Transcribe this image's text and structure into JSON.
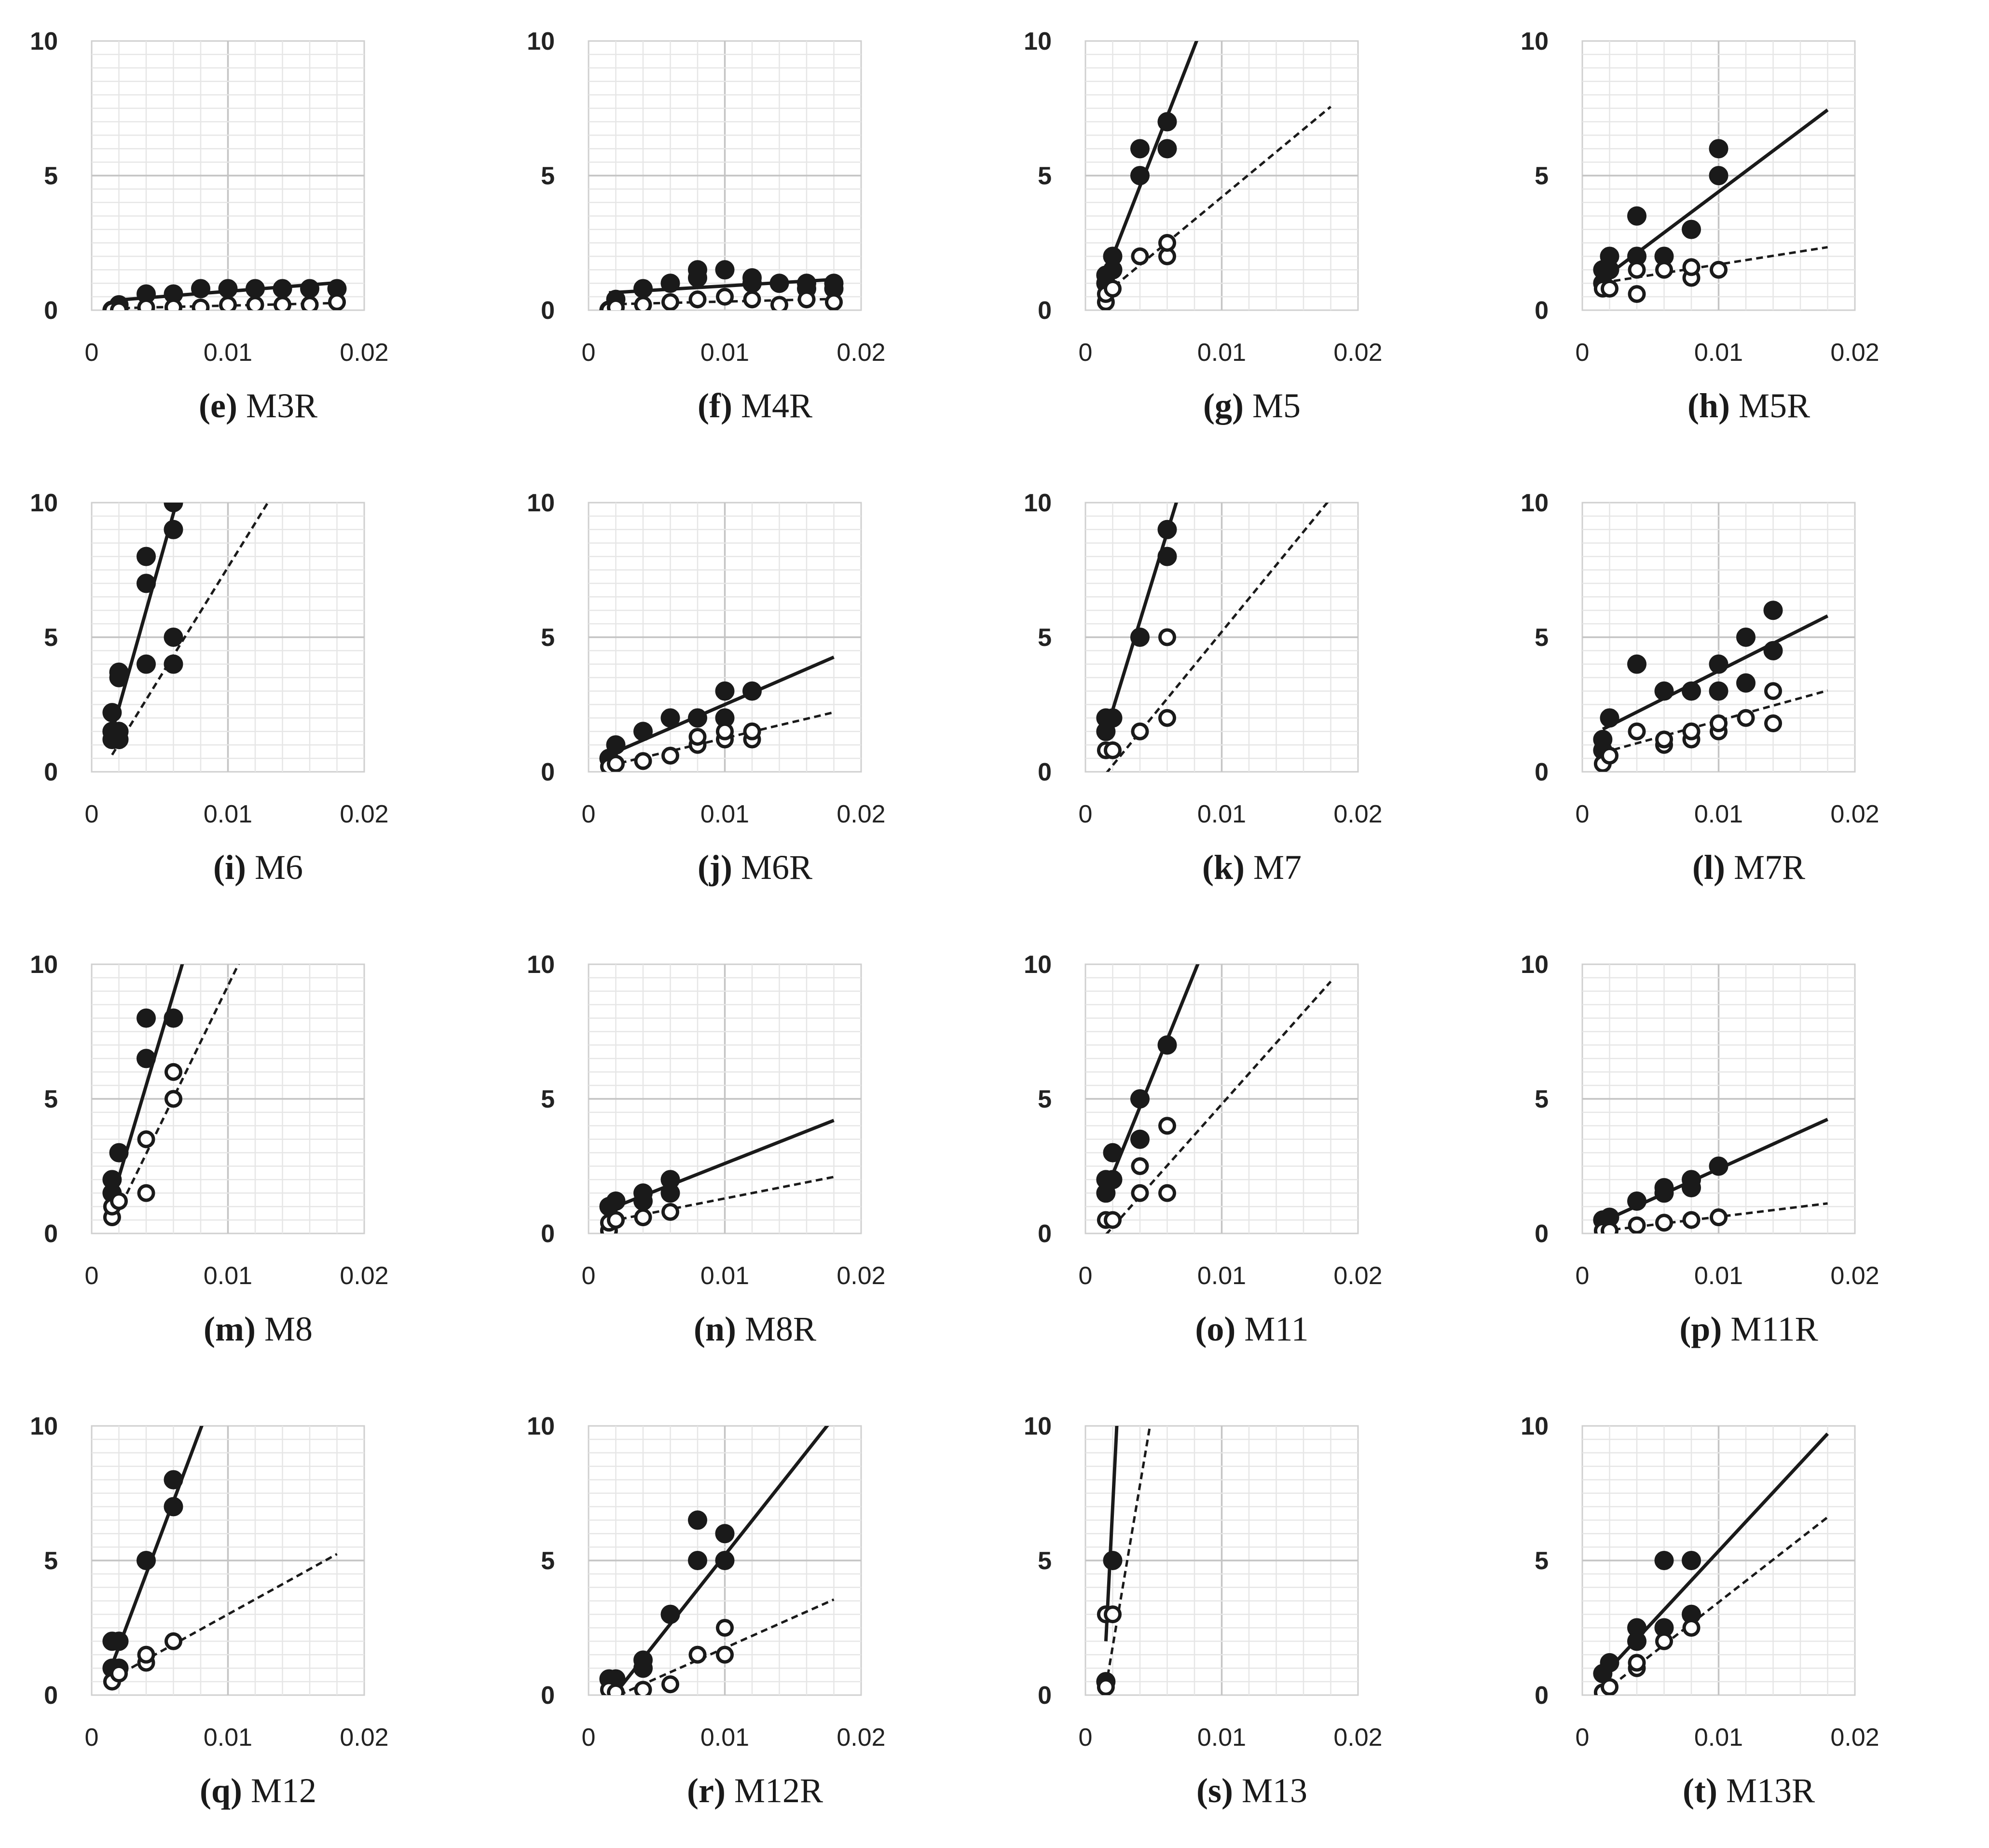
{
  "axis_tick_labels": {
    "x": [
      "0",
      "0.01",
      "0.02"
    ],
    "y": [
      "0",
      "5",
      "10"
    ]
  },
  "chart_data": [
    {
      "letter": "(e)",
      "name": "M3R",
      "type": "scatter",
      "xlim": [
        0,
        0.02
      ],
      "ylim": [
        0,
        10
      ],
      "grid": true,
      "legend": "none",
      "series": [
        {
          "marker": "filled",
          "line": "solid",
          "x": [
            0.0015,
            0.002,
            0.002,
            0.004,
            0.006,
            0.008,
            0.01,
            0.012,
            0.014,
            0.016,
            0.018
          ],
          "y": [
            0,
            0,
            0.2,
            0.6,
            0.6,
            0.8,
            0.8,
            0.8,
            0.8,
            0.8,
            0.8
          ],
          "fit": [
            0.3,
            40
          ]
        },
        {
          "marker": "open",
          "line": "dashed",
          "x": [
            0.0015,
            0.002,
            0.004,
            0.006,
            0.008,
            0.01,
            0.012,
            0.014,
            0.016,
            0.018
          ],
          "y": [
            0,
            0,
            0.1,
            0.1,
            0.1,
            0.2,
            0.2,
            0.2,
            0.2,
            0.3
          ],
          "fit": [
            0.05,
            12
          ]
        }
      ]
    },
    {
      "letter": "(f)",
      "name": "M4R",
      "type": "scatter",
      "xlim": [
        0,
        0.02
      ],
      "ylim": [
        0,
        10
      ],
      "grid": true,
      "legend": "none",
      "series": [
        {
          "marker": "filled",
          "line": "solid",
          "x": [
            0.0015,
            0.002,
            0.004,
            0.006,
            0.008,
            0.008,
            0.01,
            0.012,
            0.012,
            0.014,
            0.016,
            0.016,
            0.018,
            0.018
          ],
          "y": [
            0,
            0.4,
            0.8,
            1.0,
            1.5,
            1.2,
            1.5,
            1.2,
            1.0,
            1.0,
            1.0,
            0.8,
            1.0,
            0.8
          ],
          "fit": [
            0.6,
            30
          ]
        },
        {
          "marker": "open",
          "line": "dashed",
          "x": [
            0.0015,
            0.002,
            0.004,
            0.006,
            0.008,
            0.01,
            0.012,
            0.014,
            0.016,
            0.018
          ],
          "y": [
            0,
            0.1,
            0.2,
            0.3,
            0.4,
            0.5,
            0.4,
            0.2,
            0.4,
            0.3
          ],
          "fit": [
            0.2,
            12
          ]
        }
      ]
    },
    {
      "letter": "(g)",
      "name": "M5",
      "type": "scatter",
      "xlim": [
        0,
        0.02
      ],
      "ylim": [
        0,
        10
      ],
      "grid": true,
      "legend": "none",
      "series": [
        {
          "marker": "filled",
          "line": "solid",
          "x": [
            0.0015,
            0.0015,
            0.002,
            0.002,
            0.004,
            0.004,
            0.006,
            0.006
          ],
          "y": [
            1.0,
            1.3,
            1.5,
            2.0,
            5.0,
            6.0,
            6.0,
            7.0
          ],
          "fit": [
            -0.6,
            1300
          ]
        },
        {
          "marker": "open",
          "line": "dashed",
          "x": [
            0.0015,
            0.0015,
            0.002,
            0.004,
            0.006,
            0.006
          ],
          "y": [
            0.3,
            0.6,
            0.8,
            2.0,
            2.0,
            2.5
          ],
          "fit": [
            0,
            420
          ]
        }
      ]
    },
    {
      "letter": "(h)",
      "name": "M5R",
      "type": "scatter",
      "xlim": [
        0,
        0.02
      ],
      "ylim": [
        0,
        10
      ],
      "grid": true,
      "legend": "none",
      "series": [
        {
          "marker": "filled",
          "line": "solid",
          "x": [
            0.0015,
            0.0015,
            0.002,
            0.002,
            0.004,
            0.004,
            0.006,
            0.008,
            0.01,
            0.01
          ],
          "y": [
            1.0,
            1.5,
            1.5,
            2.0,
            2.0,
            3.5,
            2.0,
            3.0,
            5.0,
            6.0
          ],
          "fit": [
            0.6,
            380
          ]
        },
        {
          "marker": "open",
          "line": "dashed",
          "x": [
            0.0015,
            0.002,
            0.004,
            0.004,
            0.006,
            0.008,
            0.008,
            0.01
          ],
          "y": [
            0.8,
            0.8,
            0.6,
            1.5,
            1.5,
            1.2,
            1.6,
            1.5
          ],
          "fit": [
            0.9,
            80
          ]
        }
      ]
    },
    {
      "letter": "(i)",
      "name": "M6",
      "type": "scatter",
      "xlim": [
        0,
        0.02
      ],
      "ylim": [
        0,
        10
      ],
      "grid": true,
      "legend": "none",
      "series": [
        {
          "marker": "filled",
          "line": "solid",
          "x": [
            0.0015,
            0.0015,
            0.002,
            0.002,
            0.004,
            0.004,
            0.006,
            0.006
          ],
          "y": [
            1.5,
            2.2,
            3.5,
            3.7,
            7.0,
            8.0,
            9.0,
            10.0
          ],
          "fit": [
            -1.2,
            1800
          ]
        },
        {
          "marker": "filled",
          "line": "dashed",
          "x": [
            0.0015,
            0.0015,
            0.002,
            0.002,
            0.004,
            0.006,
            0.006
          ],
          "y": [
            1.2,
            1.5,
            1.2,
            1.5,
            4.0,
            4.0,
            5.0
          ],
          "fit": [
            -0.6,
            820
          ]
        }
      ]
    },
    {
      "letter": "(j)",
      "name": "M6R",
      "type": "scatter",
      "xlim": [
        0,
        0.02
      ],
      "ylim": [
        0,
        10
      ],
      "grid": true,
      "legend": "none",
      "series": [
        {
          "marker": "filled",
          "line": "solid",
          "x": [
            0.0015,
            0.002,
            0.004,
            0.006,
            0.008,
            0.01,
            0.01,
            0.012
          ],
          "y": [
            0.5,
            1.0,
            1.5,
            2.0,
            2.0,
            2.0,
            3.0,
            3.0
          ],
          "fit": [
            0.3,
            220
          ]
        },
        {
          "marker": "open",
          "line": "dashed",
          "x": [
            0.0015,
            0.002,
            0.004,
            0.006,
            0.008,
            0.008,
            0.01,
            0.01,
            0.012,
            0.012
          ],
          "y": [
            0.2,
            0.3,
            0.4,
            0.6,
            1.0,
            1.3,
            1.2,
            1.5,
            1.2,
            1.5
          ],
          "fit": [
            0.05,
            120
          ]
        }
      ]
    },
    {
      "letter": "(k)",
      "name": "M7",
      "type": "scatter",
      "xlim": [
        0,
        0.02
      ],
      "ylim": [
        0,
        10
      ],
      "grid": true,
      "legend": "none",
      "series": [
        {
          "marker": "filled",
          "line": "solid",
          "x": [
            0.0015,
            0.0015,
            0.002,
            0.004,
            0.006,
            0.006
          ],
          "y": [
            1.5,
            2.0,
            2.0,
            5.0,
            8.0,
            9.0
          ],
          "fit": [
            -1.0,
            1650
          ]
        },
        {
          "marker": "open",
          "line": "dashed",
          "x": [
            0.0015,
            0.002,
            0.004,
            0.006,
            0.006
          ],
          "y": [
            0.8,
            0.8,
            1.5,
            2.0,
            5.0
          ],
          "fit": [
            -1.0,
            620
          ]
        }
      ]
    },
    {
      "letter": "(l)",
      "name": "M7R",
      "type": "scatter",
      "xlim": [
        0,
        0.02
      ],
      "ylim": [
        0,
        10
      ],
      "grid": true,
      "legend": "none",
      "series": [
        {
          "marker": "filled",
          "line": "solid",
          "x": [
            0.0015,
            0.0015,
            0.002,
            0.004,
            0.006,
            0.008,
            0.01,
            0.01,
            0.012,
            0.012,
            0.014,
            0.014
          ],
          "y": [
            0.8,
            1.2,
            2.0,
            4.0,
            3.0,
            3.0,
            3.0,
            4.0,
            3.3,
            5.0,
            4.5,
            6.0
          ],
          "fit": [
            1.2,
            255
          ]
        },
        {
          "marker": "open",
          "line": "dashed",
          "x": [
            0.0015,
            0.002,
            0.004,
            0.006,
            0.006,
            0.008,
            0.008,
            0.01,
            0.01,
            0.012,
            0.014,
            0.014
          ],
          "y": [
            0.3,
            0.6,
            1.5,
            1.0,
            1.2,
            1.2,
            1.5,
            1.5,
            1.8,
            2.0,
            1.8,
            3.0
          ],
          "fit": [
            0.5,
            140
          ]
        }
      ]
    },
    {
      "letter": "(m)",
      "name": "M8",
      "type": "scatter",
      "xlim": [
        0,
        0.02
      ],
      "ylim": [
        0,
        10
      ],
      "grid": true,
      "legend": "none",
      "series": [
        {
          "marker": "filled",
          "line": "solid",
          "x": [
            0.0015,
            0.0015,
            0.002,
            0.004,
            0.004,
            0.006
          ],
          "y": [
            1.5,
            2.0,
            3.0,
            6.5,
            8.0,
            8.0
          ],
          "fit": [
            -1.3,
            1700
          ]
        },
        {
          "marker": "open",
          "line": "dashed",
          "x": [
            0.0015,
            0.0015,
            0.002,
            0.004,
            0.004,
            0.006,
            0.006
          ],
          "y": [
            0.6,
            1.0,
            1.2,
            1.5,
            3.5,
            5.0,
            6.0
          ],
          "fit": [
            -1.2,
            1040
          ]
        }
      ]
    },
    {
      "letter": "(n)",
      "name": "M8R",
      "type": "scatter",
      "xlim": [
        0,
        0.02
      ],
      "ylim": [
        0,
        10
      ],
      "grid": true,
      "legend": "none",
      "series": [
        {
          "marker": "filled",
          "line": "solid",
          "x": [
            0.0015,
            0.002,
            0.004,
            0.004,
            0.006,
            0.006
          ],
          "y": [
            1.0,
            1.2,
            1.2,
            1.5,
            1.5,
            2.0
          ],
          "fit": [
            0.6,
            200
          ]
        },
        {
          "marker": "open",
          "line": "dashed",
          "x": [
            0.0015,
            0.0015,
            0.002,
            0.004,
            0.006
          ],
          "y": [
            0.1,
            0.4,
            0.5,
            0.6,
            0.8
          ],
          "fit": [
            0.3,
            100
          ]
        }
      ]
    },
    {
      "letter": "(o)",
      "name": "M11",
      "type": "scatter",
      "xlim": [
        0,
        0.02
      ],
      "ylim": [
        0,
        10
      ],
      "grid": true,
      "legend": "none",
      "series": [
        {
          "marker": "filled",
          "line": "solid",
          "x": [
            0.0015,
            0.0015,
            0.002,
            0.002,
            0.004,
            0.004,
            0.006
          ],
          "y": [
            1.5,
            2.0,
            2.0,
            3.0,
            3.5,
            5.0,
            7.0
          ],
          "fit": [
            -0.3,
            1250
          ]
        },
        {
          "marker": "open",
          "line": "dashed",
          "x": [
            0.0015,
            0.002,
            0.004,
            0.004,
            0.006,
            0.006
          ],
          "y": [
            0.5,
            0.5,
            1.5,
            2.5,
            1.5,
            4.0
          ],
          "fit": [
            -0.9,
            570
          ]
        }
      ]
    },
    {
      "letter": "(p)",
      "name": "M11R",
      "type": "scatter",
      "xlim": [
        0,
        0.02
      ],
      "ylim": [
        0,
        10
      ],
      "grid": true,
      "legend": "none",
      "series": [
        {
          "marker": "filled",
          "line": "solid",
          "x": [
            0.0015,
            0.002,
            0.004,
            0.006,
            0.006,
            0.008,
            0.008,
            0.01
          ],
          "y": [
            0.5,
            0.6,
            1.2,
            1.5,
            1.7,
            1.7,
            2.0,
            2.5
          ],
          "fit": [
            0.1,
            230
          ]
        },
        {
          "marker": "open",
          "line": "dashed",
          "x": [
            0.0015,
            0.002,
            0.004,
            0.006,
            0.008,
            0.01
          ],
          "y": [
            0.1,
            0.1,
            0.3,
            0.4,
            0.5,
            0.6
          ],
          "fit": [
            0.0,
            62
          ]
        }
      ]
    },
    {
      "letter": "(q)",
      "name": "M12",
      "type": "scatter",
      "xlim": [
        0,
        0.02
      ],
      "ylim": [
        0,
        10
      ],
      "grid": true,
      "legend": "none",
      "series": [
        {
          "marker": "filled",
          "line": "solid",
          "x": [
            0.0015,
            0.0015,
            0.002,
            0.002,
            0.004,
            0.006,
            0.006
          ],
          "y": [
            1.0,
            2.0,
            1.0,
            2.0,
            5.0,
            7.0,
            8.0
          ],
          "fit": [
            -0.9,
            1350
          ]
        },
        {
          "marker": "open",
          "line": "dashed",
          "x": [
            0.0015,
            0.002,
            0.004,
            0.004,
            0.006
          ],
          "y": [
            0.5,
            0.8,
            1.2,
            1.5,
            2.0
          ],
          "fit": [
            0.2,
            280
          ]
        }
      ]
    },
    {
      "letter": "(r)",
      "name": "M12R",
      "type": "scatter",
      "xlim": [
        0,
        0.02
      ],
      "ylim": [
        0,
        10
      ],
      "grid": true,
      "legend": "none",
      "series": [
        {
          "marker": "filled",
          "line": "solid",
          "x": [
            0.0015,
            0.002,
            0.004,
            0.004,
            0.006,
            0.008,
            0.008,
            0.01,
            0.01
          ],
          "y": [
            0.6,
            0.6,
            1.0,
            1.3,
            3.0,
            5.0,
            6.5,
            5.0,
            6.0
          ],
          "fit": [
            -1.2,
            640
          ]
        },
        {
          "marker": "open",
          "line": "dashed",
          "x": [
            0.0015,
            0.002,
            0.004,
            0.006,
            0.008,
            0.01,
            0.01
          ],
          "y": [
            0.2,
            0.1,
            0.2,
            0.4,
            1.5,
            1.5,
            2.5
          ],
          "fit": [
            -0.5,
            225
          ]
        }
      ]
    },
    {
      "letter": "(s)",
      "name": "M13",
      "type": "scatter",
      "xlim": [
        0,
        0.02
      ],
      "ylim": [
        0,
        10
      ],
      "grid": true,
      "legend": "none",
      "series": [
        {
          "marker": "filled",
          "line": "solid",
          "x": [
            0.0015,
            0.002
          ],
          "y": [
            0.5,
            5.0
          ],
          "fit": [
            -13,
            10000
          ]
        },
        {
          "marker": "open",
          "line": "dashed",
          "x": [
            0.0015,
            0.0015,
            0.002
          ],
          "y": [
            0.3,
            3.0,
            3.0
          ],
          "fit": [
            -4.2,
            3000
          ]
        }
      ]
    },
    {
      "letter": "(t)",
      "name": "M13R",
      "type": "scatter",
      "xlim": [
        0,
        0.02
      ],
      "ylim": [
        0,
        10
      ],
      "grid": true,
      "legend": "none",
      "series": [
        {
          "marker": "filled",
          "line": "solid",
          "x": [
            0.0015,
            0.002,
            0.004,
            0.004,
            0.006,
            0.006,
            0.008,
            0.008
          ],
          "y": [
            0.8,
            1.2,
            2.0,
            2.5,
            2.5,
            5.0,
            3.0,
            5.0
          ],
          "fit": [
            -0.1,
            545
          ]
        },
        {
          "marker": "open",
          "line": "dashed",
          "x": [
            0.0015,
            0.002,
            0.004,
            0.004,
            0.006,
            0.008
          ],
          "y": [
            0.1,
            0.3,
            1.0,
            1.2,
            2.0,
            2.5
          ],
          "fit": [
            -0.5,
            395
          ]
        }
      ]
    }
  ]
}
